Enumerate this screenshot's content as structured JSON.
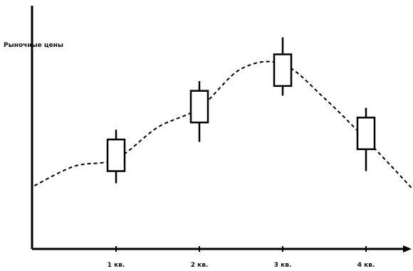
{
  "chart_data": {
    "type": "candlestick",
    "title": "",
    "ylabel": "Рыночные цены",
    "xlabel": "",
    "categories": [
      "1 кв.",
      "2 кв.",
      "3 кв.",
      "4 кв."
    ],
    "ylim": [
      0,
      100
    ],
    "grid": false,
    "candles": [
      {
        "category": "1 кв.",
        "high": 49,
        "box_top": 45,
        "box_bottom": 32,
        "low": 27
      },
      {
        "category": "2 кв.",
        "high": 69,
        "box_top": 65,
        "box_bottom": 52,
        "low": 44
      },
      {
        "category": "3 кв.",
        "high": 87,
        "box_top": 80,
        "box_bottom": 67,
        "low": 63
      },
      {
        "category": "4 кв.",
        "high": 58,
        "box_top": 54,
        "box_bottom": 41,
        "low": 32
      }
    ],
    "trend_line": {
      "style": "dashed",
      "x": [
        -0.98,
        -0.5,
        0.0,
        0.5,
        1.0,
        1.5,
        2.0,
        2.5,
        3.0,
        3.55
      ],
      "y": [
        26,
        34,
        37,
        50,
        58,
        74,
        76,
        62,
        45,
        25
      ]
    }
  },
  "colors": {
    "line": "#000000",
    "box_fill": "#ffffff",
    "text": "#111111"
  }
}
